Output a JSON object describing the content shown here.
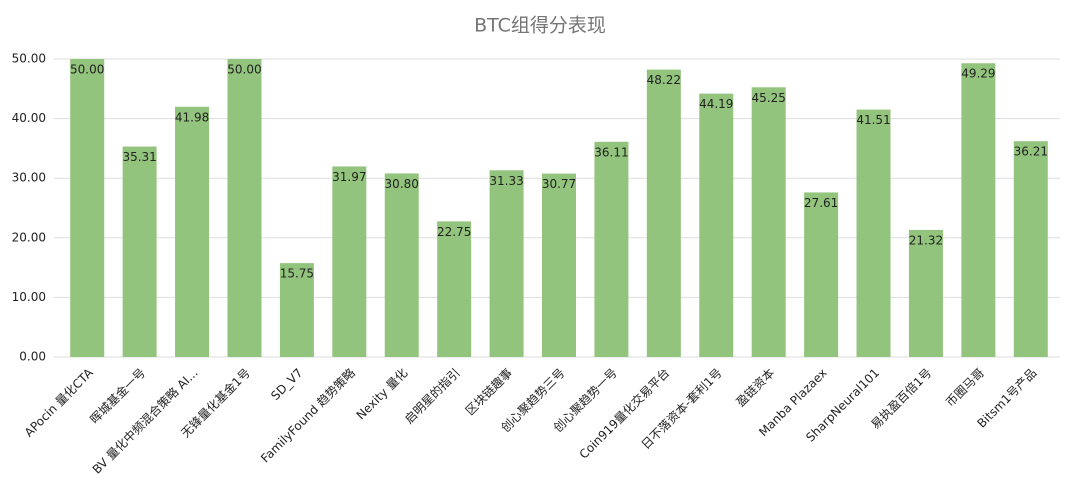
{
  "chart_data": {
    "type": "bar",
    "title": "BTC组得分表现",
    "categories": [
      "APocin 量化CTA",
      "晖城基金一号",
      "BV 量化中频混合策略 AI...",
      "无锋量化基金1号",
      "SD_V7",
      "FamilyFound 趋势策略",
      "Nexity 量化",
      "启明星的指引",
      "区块链趣事",
      "创心聚趋势三号",
      "创心聚趋势一号",
      "Coin919量化交易平台",
      "日不落资本-套利1号",
      "盈链资本",
      "Manba Plazaex",
      "SharpNeural101",
      "易执盈百倍1号",
      "币圈马哥",
      "Bitsm1号产品"
    ],
    "values": [
      50,
      35.31,
      41.98,
      50,
      15.75,
      31.97,
      30.8,
      22.75,
      31.33,
      30.77,
      36.11,
      48.22,
      44.19,
      45.25,
      27.61,
      41.51,
      21.32,
      49.29,
      36.21
    ],
    "value_labels": [
      "50.00",
      "35.31",
      "41.98",
      "50.00",
      "15.75",
      "31.97",
      "30.80",
      "22.75",
      "31.33",
      "30.77",
      "36.11",
      "48.22",
      "44.19",
      "45.25",
      "27.61",
      "41.51",
      "21.32",
      "49.29",
      "36.21"
    ],
    "color": "#93c47d",
    "ylim": [
      0,
      50
    ],
    "yticks": [
      {
        "value": 0,
        "label": "0.00"
      },
      {
        "value": 10,
        "label": "10.00"
      },
      {
        "value": 20,
        "label": "20.00"
      },
      {
        "value": 30,
        "label": "30.00"
      },
      {
        "value": 40,
        "label": "40.00"
      },
      {
        "value": 50,
        "label": "50.00"
      }
    ],
    "grid": true
  }
}
